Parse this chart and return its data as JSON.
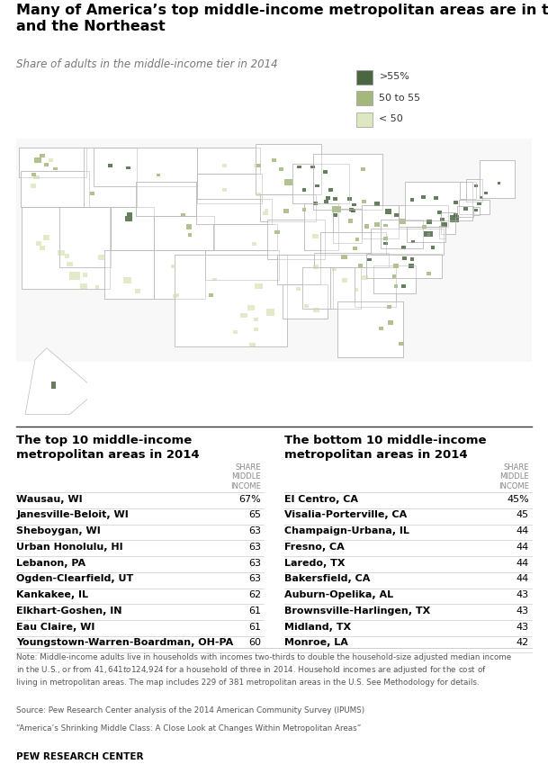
{
  "title": "Many of America’s top middle-income metropolitan areas are in the Midwest\nand the Northeast",
  "subtitle": "Share of adults in the middle-income tier in 2014",
  "legend_labels": [
    ">55%",
    "50 to 55",
    "< 50"
  ],
  "legend_colors": [
    "#4a6741",
    "#a3b87a",
    "#dde8c0"
  ],
  "top_title": "The top 10 middle-income\nmetropolitan areas in 2014",
  "bottom_title": "The bottom 10 middle-income\nmetropolitan areas in 2014",
  "share_col_header": "SHARE\nMIDDLE\nINCOME",
  "top_areas": [
    [
      "Wausau, WI",
      "67%"
    ],
    [
      "Janesville-Beloit, WI",
      "65"
    ],
    [
      "Sheboygan, WI",
      "63"
    ],
    [
      "Urban Honolulu, HI",
      "63"
    ],
    [
      "Lebanon, PA",
      "63"
    ],
    [
      "Ogden-Clearfield, UT",
      "63"
    ],
    [
      "Kankakee, IL",
      "62"
    ],
    [
      "Elkhart-Goshen, IN",
      "61"
    ],
    [
      "Eau Claire, WI",
      "61"
    ],
    [
      "Youngstown-Warren-Boardman, OH-PA",
      "60"
    ]
  ],
  "bottom_areas": [
    [
      "El Centro, CA",
      "45%"
    ],
    [
      "Visalia-Porterville, CA",
      "45"
    ],
    [
      "Champaign-Urbana, IL",
      "44"
    ],
    [
      "Fresno, CA",
      "44"
    ],
    [
      "Laredo, TX",
      "44"
    ],
    [
      "Bakersfield, CA",
      "44"
    ],
    [
      "Auburn-Opelika, AL",
      "43"
    ],
    [
      "Brownsville-Harlingen, TX",
      "43"
    ],
    [
      "Midland, TX",
      "43"
    ],
    [
      "Monroe, LA",
      "42"
    ]
  ],
  "note_text": "Note: Middle-income adults live in households with incomes two-thirds to double the household-size adjusted median income\nin the U.S., or from $41,641 to $124,924 for a household of three in 2014. Household incomes are adjusted for the cost of\nliving in metropolitan areas. The map includes 229 of 381 metropolitan areas in the U.S. See Methodology for details.",
  "source_text": "Source: Pew Research Center analysis of the 2014 American Community Survey (IPUMS)",
  "quote_text": "“America’s Shrinking Middle Class: A Close Look at Changes Within Metropolitan Areas”",
  "footer_text": "PEW RESEARCH CENTER",
  "bg_color": "#ffffff",
  "title_color": "#000000",
  "subtitle_color": "#777777",
  "table_header_color": "#888888",
  "row_line_color": "#cccccc",
  "note_color": "#555555",
  "map_bg": "#f0f0f0",
  "figwidth": 6.09,
  "figheight": 8.69,
  "dpi": 100
}
